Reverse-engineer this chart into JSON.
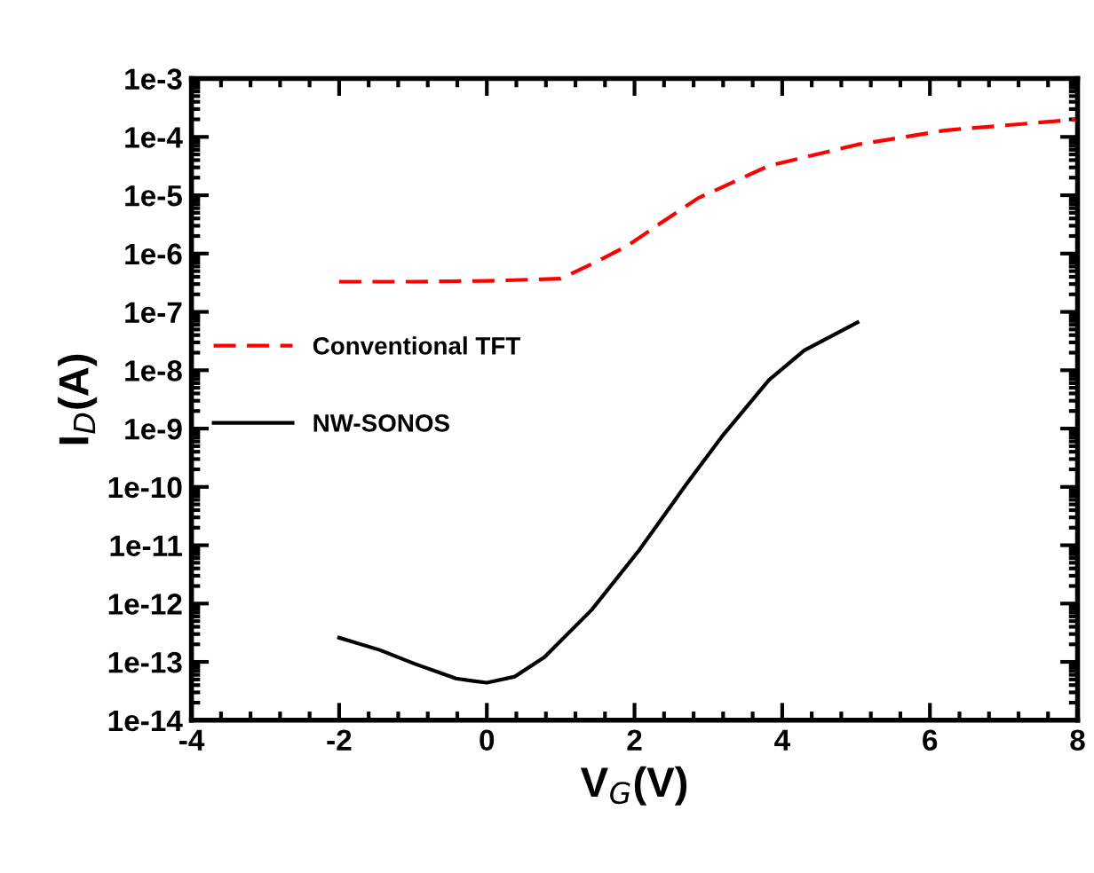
{
  "chart_data": {
    "type": "line",
    "xlabel": "V$_{G}$(V)",
    "ylabel": "I$_{D}$(A)",
    "log": "y",
    "xlim": [
      -4,
      8
    ],
    "xticks": [
      -4,
      -2,
      0,
      2,
      4,
      6,
      8
    ],
    "ylim": [
      1e-14,
      0.001
    ],
    "yticks": [
      {
        "value": 1e-14,
        "label": "1e-14"
      },
      {
        "value": 1e-13,
        "label": "1e-13"
      },
      {
        "value": 1e-12,
        "label": "1e-12"
      },
      {
        "value": 1e-11,
        "label": "1e-11"
      },
      {
        "value": 1e-10,
        "label": "1e-10"
      },
      {
        "value": 1e-09,
        "label": "1e-9"
      },
      {
        "value": 1e-08,
        "label": "1e-8"
      },
      {
        "value": 1e-07,
        "label": "1e-7"
      },
      {
        "value": 1e-06,
        "label": "1e-6"
      },
      {
        "value": 1e-05,
        "label": "1e-5"
      },
      {
        "value": 0.0001,
        "label": "1e-4"
      },
      {
        "value": 0.001,
        "label": "1e-3"
      }
    ],
    "grid": false,
    "legend": "left",
    "series": [
      {
        "name": "Conventional TFT",
        "color": "#ff0000",
        "line_style": "dashed",
        "x": [
          -2,
          -1,
          0,
          1,
          1.42,
          1.9,
          2.38,
          2.86,
          3.82,
          5.02,
          6.22,
          8
        ],
        "values": [
          3.3e-07,
          3.3e-07,
          3.4e-07,
          3.7e-07,
          6.6e-07,
          1.35e-06,
          3.5e-06,
          8.9e-06,
          3.2e-05,
          7.4e-05,
          0.00013,
          0.0002
        ]
      },
      {
        "name": "NW-SONOS",
        "color": "#000000",
        "line_style": "solid",
        "x": [
          -2,
          -1.45,
          -0.98,
          -0.42,
          -0.18,
          0,
          0.38,
          0.78,
          1.42,
          2.06,
          2.7,
          3.18,
          3.82,
          4.3,
          5.02
        ],
        "values": [
          2.6e-13,
          1.6e-13,
          9.3e-14,
          5.2e-14,
          4.7e-14,
          4.4e-14,
          5.6e-14,
          1.2e-13,
          7.8e-13,
          8.1e-12,
          1.1e-10,
          7.2e-10,
          6.8e-09,
          2.2e-08,
          6.6e-08
        ]
      }
    ]
  }
}
